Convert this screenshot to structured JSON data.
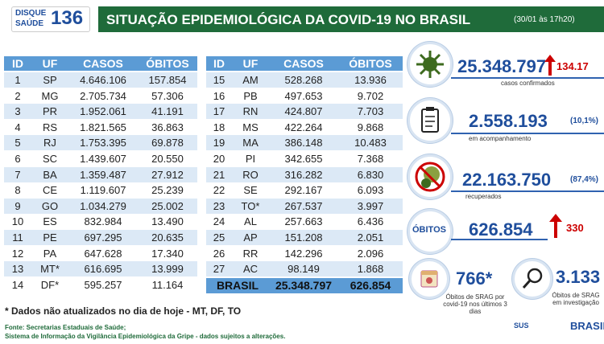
{
  "header": {
    "logo_line1": "DISQUE",
    "logo_line2": "SAÚDE",
    "logo_number": "136",
    "title": "SITUAÇÃO EPIDEMIOLÓGICA DA COVID-19 NO BRASIL",
    "timestamp": "(30/01 às 17h20)"
  },
  "table_left": {
    "columns": [
      "ID",
      "UF",
      "CASOS",
      "ÓBITOS"
    ],
    "rows": [
      [
        "1",
        "SP",
        "4.646.106",
        "157.854"
      ],
      [
        "2",
        "MG",
        "2.705.734",
        "57.306"
      ],
      [
        "3",
        "PR",
        "1.952.061",
        "41.191"
      ],
      [
        "4",
        "RS",
        "1.821.565",
        "36.863"
      ],
      [
        "5",
        "RJ",
        "1.753.395",
        "69.878"
      ],
      [
        "6",
        "SC",
        "1.439.607",
        "20.550"
      ],
      [
        "7",
        "BA",
        "1.359.487",
        "27.912"
      ],
      [
        "8",
        "CE",
        "1.119.607",
        "25.239"
      ],
      [
        "9",
        "GO",
        "1.034.279",
        "25.002"
      ],
      [
        "10",
        "ES",
        "832.984",
        "13.490"
      ],
      [
        "11",
        "PE",
        "697.295",
        "20.635"
      ],
      [
        "12",
        "PA",
        "647.628",
        "17.340"
      ],
      [
        "13",
        "MT*",
        "616.695",
        "13.999"
      ],
      [
        "14",
        "DF*",
        "595.257",
        "11.164"
      ]
    ]
  },
  "table_right": {
    "columns": [
      "ID",
      "UF",
      "CASOS",
      "ÓBITOS"
    ],
    "rows": [
      [
        "15",
        "AM",
        "528.268",
        "13.936"
      ],
      [
        "16",
        "PB",
        "497.653",
        "9.702"
      ],
      [
        "17",
        "RN",
        "424.807",
        "7.703"
      ],
      [
        "18",
        "MS",
        "422.264",
        "9.868"
      ],
      [
        "19",
        "MA",
        "386.148",
        "10.483"
      ],
      [
        "20",
        "PI",
        "342.655",
        "7.368"
      ],
      [
        "21",
        "RO",
        "316.282",
        "6.830"
      ],
      [
        "22",
        "SE",
        "292.167",
        "6.093"
      ],
      [
        "23",
        "TO*",
        "267.537",
        "3.997"
      ],
      [
        "24",
        "AL",
        "257.663",
        "6.436"
      ],
      [
        "25",
        "AP",
        "151.208",
        "2.051"
      ],
      [
        "26",
        "RR",
        "142.296",
        "2.096"
      ],
      [
        "27",
        "AC",
        "98.149",
        "1.868"
      ]
    ],
    "total": [
      "BRASIL",
      "25.348.797",
      "626.854"
    ]
  },
  "stats": {
    "confirmed": {
      "value": "25.348.797",
      "increase": "134.17",
      "label": "casos confirmados"
    },
    "monitoring": {
      "value": "2.558.193",
      "percent": "(10,1%)",
      "label": "em acompanhamento"
    },
    "recovered": {
      "value": "22.163.750",
      "percent": "(87,4%)",
      "label": "recuperados"
    },
    "deaths": {
      "badge": "ÓBITOS",
      "value": "626.854",
      "increase": "330"
    },
    "srag_recent": {
      "value": "766*",
      "label": "Óbitos de SRAG por covid-19 nos últimos 3 dias"
    },
    "srag_investigation": {
      "value": "3.133",
      "label": "Óbitos de SRAG em investigação"
    }
  },
  "footnote": "* Dados não atualizados no dia de hoje - MT, DF, TO",
  "source": [
    "Fonte: Secretarias Estaduais de Saúde;",
    "Sistema de Informação da Vigilância Epidemiológica da Gripe - dados sujeitos a alterações."
  ],
  "logos": [
    "SUS",
    "BRASIL"
  ]
}
